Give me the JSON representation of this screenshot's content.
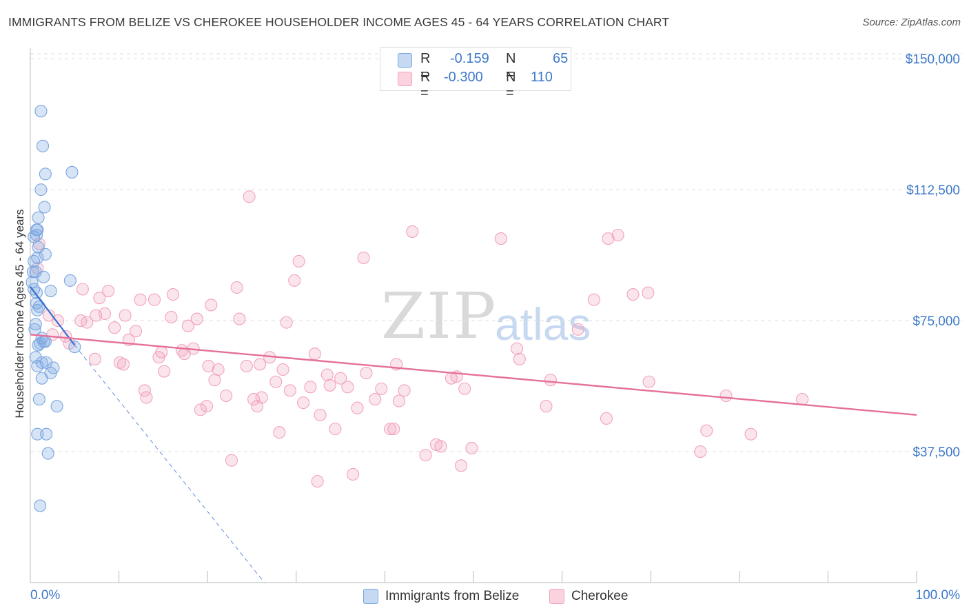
{
  "title": "IMMIGRANTS FROM BELIZE VS CHEROKEE HOUSEHOLDER INCOME AGES 45 - 64 YEARS CORRELATION CHART",
  "source": "Source: ZipAtlas.com",
  "watermark": {
    "zip": "ZIP",
    "atlas": "atlas"
  },
  "legend_top": [
    {
      "r_label": "R =",
      "r_value": "-0.159",
      "n_label": "N =",
      "n_value": "65"
    },
    {
      "r_label": "R =",
      "r_value": "-0.300",
      "n_label": "N =",
      "n_value": "110"
    }
  ],
  "legend_bottom": [
    "Immigrants from Belize",
    "Cherokee"
  ],
  "chart_data": {
    "type": "scatter",
    "ylabel": "Householder Income Ages 45 - 64 years",
    "xlabel": "",
    "x_tick_labels": [
      "0.0%",
      "100.0%"
    ],
    "y_tick_labels": [
      "$37,500",
      "$75,000",
      "$112,500",
      "$150,000"
    ],
    "y_ticks": [
      37500,
      75000,
      112500,
      150000
    ],
    "xlim": [
      0,
      100
    ],
    "ylim": [
      0,
      153000
    ],
    "grid": "horizontal-dashed",
    "legend_position": "bottom",
    "colors": {
      "blue": "#7aa6e0",
      "blue_line": "#3a6fd0",
      "pink": "#f2a2bb",
      "pink_line": "#e5709a"
    },
    "series": [
      {
        "name": "Immigrants from Belize",
        "color": "#7aa6e0",
        "trend": {
          "x0": 0,
          "y0": 84700,
          "x1": 5,
          "y1": 68000,
          "dash_x_end": 26.4,
          "dash_y_end": 0
        },
        "points": [
          [
            1.2,
            135000
          ],
          [
            1.4,
            125000
          ],
          [
            1.7,
            117000
          ],
          [
            4.7,
            117500
          ],
          [
            1.2,
            112500
          ],
          [
            1.6,
            107500
          ],
          [
            0.9,
            104500
          ],
          [
            0.7,
            101000
          ],
          [
            0.8,
            101000
          ],
          [
            0.4,
            99000
          ],
          [
            0.7,
            99500
          ],
          [
            0.9,
            96000
          ],
          [
            0.8,
            93000
          ],
          [
            1.7,
            94000
          ],
          [
            0.4,
            92000
          ],
          [
            0.3,
            89000
          ],
          [
            0.6,
            89000
          ],
          [
            0.2,
            86000
          ],
          [
            1.5,
            87500
          ],
          [
            4.5,
            86500
          ],
          [
            0.4,
            84000
          ],
          [
            0.7,
            83000
          ],
          [
            2.3,
            83500
          ],
          [
            0.7,
            80000
          ],
          [
            1.0,
            79000
          ],
          [
            0.8,
            78000
          ],
          [
            0.6,
            74000
          ],
          [
            0.5,
            72500
          ],
          [
            1.3,
            70000
          ],
          [
            1.1,
            68500
          ],
          [
            1.5,
            69000
          ],
          [
            1.7,
            69000
          ],
          [
            0.9,
            68000
          ],
          [
            5.0,
            67500
          ],
          [
            0.6,
            64500
          ],
          [
            1.3,
            63000
          ],
          [
            1.8,
            63000
          ],
          [
            0.8,
            62000
          ],
          [
            2.6,
            61500
          ],
          [
            2.3,
            60000
          ],
          [
            1.3,
            58500
          ],
          [
            1.0,
            52500
          ],
          [
            3.0,
            50500
          ],
          [
            0.8,
            42500
          ],
          [
            1.8,
            42500
          ],
          [
            2.0,
            37000
          ],
          [
            1.1,
            22000
          ]
        ]
      },
      {
        "name": "Cherokee",
        "color": "#f2a2bb",
        "trend": {
          "x0": 0,
          "y0": 71000,
          "x1": 100,
          "y1": 48000
        },
        "points": [
          [
            1.0,
            97000
          ],
          [
            0.8,
            90000
          ],
          [
            2.1,
            76500
          ],
          [
            3.1,
            75000
          ],
          [
            2.5,
            71000
          ],
          [
            4.0,
            70500
          ],
          [
            4.4,
            68500
          ],
          [
            5.7,
            75000
          ],
          [
            5.9,
            84000
          ],
          [
            6.4,
            74500
          ],
          [
            7.4,
            76500
          ],
          [
            7.3,
            64000
          ],
          [
            7.8,
            81500
          ],
          [
            8.4,
            77000
          ],
          [
            8.8,
            83500
          ],
          [
            9.5,
            73000
          ],
          [
            10.1,
            63000
          ],
          [
            10.5,
            62500
          ],
          [
            10.7,
            76500
          ],
          [
            11.1,
            69500
          ],
          [
            11.9,
            72000
          ],
          [
            12.4,
            81000
          ],
          [
            12.9,
            55000
          ],
          [
            13.1,
            53000
          ],
          [
            14.0,
            81000
          ],
          [
            14.5,
            64500
          ],
          [
            14.8,
            66000
          ],
          [
            15.1,
            60500
          ],
          [
            15.9,
            76000
          ],
          [
            16.1,
            82500
          ],
          [
            17.1,
            66500
          ],
          [
            17.4,
            65500
          ],
          [
            17.8,
            73500
          ],
          [
            18.4,
            67000
          ],
          [
            18.8,
            75500
          ],
          [
            19.2,
            49500
          ],
          [
            19.9,
            50500
          ],
          [
            20.1,
            62000
          ],
          [
            20.4,
            79500
          ],
          [
            20.8,
            58000
          ],
          [
            21.2,
            61000
          ],
          [
            22.1,
            53500
          ],
          [
            22.7,
            35000
          ],
          [
            23.3,
            84500
          ],
          [
            23.6,
            75500
          ],
          [
            24.4,
            62000
          ],
          [
            24.7,
            110500
          ],
          [
            25.2,
            52500
          ],
          [
            25.6,
            50500
          ],
          [
            25.9,
            62500
          ],
          [
            26.1,
            53000
          ],
          [
            27.0,
            64500
          ],
          [
            27.7,
            57500
          ],
          [
            28.1,
            43000
          ],
          [
            28.5,
            61000
          ],
          [
            28.9,
            74500
          ],
          [
            29.3,
            55000
          ],
          [
            29.8,
            86500
          ],
          [
            30.3,
            92000
          ],
          [
            30.8,
            51500
          ],
          [
            31.6,
            56000
          ],
          [
            32.1,
            65500
          ],
          [
            32.4,
            29000
          ],
          [
            32.7,
            48000
          ],
          [
            33.5,
            59500
          ],
          [
            33.8,
            56500
          ],
          [
            34.4,
            44000
          ],
          [
            35.0,
            58500
          ],
          [
            35.8,
            56000
          ],
          [
            36.4,
            31000
          ],
          [
            36.9,
            50000
          ],
          [
            37.6,
            93000
          ],
          [
            37.9,
            60000
          ],
          [
            38.9,
            52500
          ],
          [
            39.6,
            55500
          ],
          [
            40.6,
            44000
          ],
          [
            41.0,
            44000
          ],
          [
            41.3,
            62500
          ],
          [
            41.6,
            52000
          ],
          [
            42.2,
            55000
          ],
          [
            43.1,
            100500
          ],
          [
            44.6,
            36500
          ],
          [
            45.8,
            39500
          ],
          [
            46.3,
            39000
          ],
          [
            47.5,
            58500
          ],
          [
            48.1,
            59000
          ],
          [
            48.6,
            33500
          ],
          [
            49.0,
            55500
          ],
          [
            49.8,
            38500
          ],
          [
            53.1,
            98500
          ],
          [
            54.9,
            67000
          ],
          [
            55.2,
            64000
          ],
          [
            58.2,
            50500
          ],
          [
            58.7,
            58000
          ],
          [
            61.8,
            72500
          ],
          [
            63.6,
            81000
          ],
          [
            65.0,
            47000
          ],
          [
            65.2,
            98500
          ],
          [
            66.3,
            99500
          ],
          [
            68.0,
            82500
          ],
          [
            69.7,
            83000
          ],
          [
            69.8,
            57500
          ],
          [
            75.6,
            37500
          ],
          [
            76.3,
            43500
          ],
          [
            78.5,
            53500
          ],
          [
            81.3,
            42500
          ],
          [
            87.1,
            52500
          ]
        ]
      }
    ]
  }
}
